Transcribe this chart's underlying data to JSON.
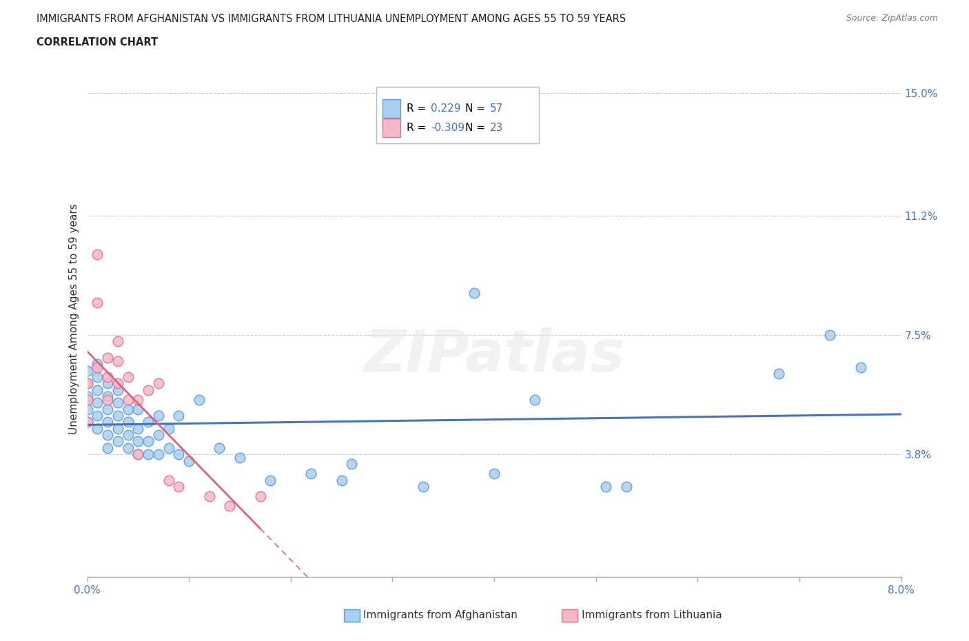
{
  "title_line1": "IMMIGRANTS FROM AFGHANISTAN VS IMMIGRANTS FROM LITHUANIA UNEMPLOYMENT AMONG AGES 55 TO 59 YEARS",
  "title_line2": "CORRELATION CHART",
  "source": "Source: ZipAtlas.com",
  "ylabel": "Unemployment Among Ages 55 to 59 years",
  "xlim": [
    0.0,
    0.08
  ],
  "ylim": [
    0.0,
    0.16
  ],
  "yticks": [
    0.0,
    0.038,
    0.075,
    0.112,
    0.15
  ],
  "ytick_labels": [
    "",
    "3.8%",
    "7.5%",
    "11.2%",
    "15.0%"
  ],
  "xtick_positions": [
    0.0,
    0.01,
    0.02,
    0.03,
    0.04,
    0.05,
    0.06,
    0.07,
    0.08
  ],
  "afghanistan_R": "0.229",
  "afghanistan_N": "57",
  "lithuania_R": "-0.309",
  "lithuania_N": "23",
  "afghanistan_color": "#a8cff0",
  "lithuania_color": "#f5b8c8",
  "afghanistan_edge": "#5b9bd5",
  "lithuania_edge": "#e07090",
  "trend_af_color": "#4472c4",
  "trend_lit_color": "#e06080",
  "legend_R_color": "#4472c4",
  "af_x": [
    0.0,
    0.0,
    0.0,
    0.0,
    0.0,
    0.001,
    0.001,
    0.001,
    0.001,
    0.001,
    0.001,
    0.002,
    0.002,
    0.002,
    0.002,
    0.002,
    0.002,
    0.003,
    0.003,
    0.003,
    0.003,
    0.003,
    0.004,
    0.004,
    0.004,
    0.004,
    0.005,
    0.005,
    0.005,
    0.005,
    0.006,
    0.006,
    0.006,
    0.007,
    0.007,
    0.007,
    0.008,
    0.008,
    0.009,
    0.009,
    0.01,
    0.011,
    0.013,
    0.015,
    0.018,
    0.022,
    0.025,
    0.026,
    0.033,
    0.038,
    0.04,
    0.044,
    0.051,
    0.053,
    0.068,
    0.073,
    0.076
  ],
  "af_y": [
    0.048,
    0.052,
    0.056,
    0.06,
    0.064,
    0.046,
    0.05,
    0.054,
    0.058,
    0.062,
    0.066,
    0.044,
    0.048,
    0.052,
    0.056,
    0.06,
    0.04,
    0.042,
    0.046,
    0.05,
    0.054,
    0.058,
    0.04,
    0.044,
    0.048,
    0.052,
    0.038,
    0.042,
    0.046,
    0.052,
    0.038,
    0.042,
    0.048,
    0.038,
    0.044,
    0.05,
    0.04,
    0.046,
    0.038,
    0.05,
    0.036,
    0.055,
    0.04,
    0.037,
    0.03,
    0.032,
    0.03,
    0.035,
    0.028,
    0.088,
    0.032,
    0.055,
    0.028,
    0.028,
    0.063,
    0.075,
    0.065
  ],
  "lit_x": [
    0.0,
    0.0,
    0.0,
    0.001,
    0.001,
    0.001,
    0.002,
    0.002,
    0.002,
    0.003,
    0.003,
    0.003,
    0.004,
    0.004,
    0.005,
    0.005,
    0.006,
    0.007,
    0.008,
    0.009,
    0.012,
    0.014,
    0.017
  ],
  "lit_y": [
    0.055,
    0.06,
    0.048,
    0.065,
    0.085,
    0.1,
    0.055,
    0.062,
    0.068,
    0.06,
    0.067,
    0.073,
    0.055,
    0.062,
    0.055,
    0.038,
    0.058,
    0.06,
    0.03,
    0.028,
    0.025,
    0.022,
    0.025
  ]
}
